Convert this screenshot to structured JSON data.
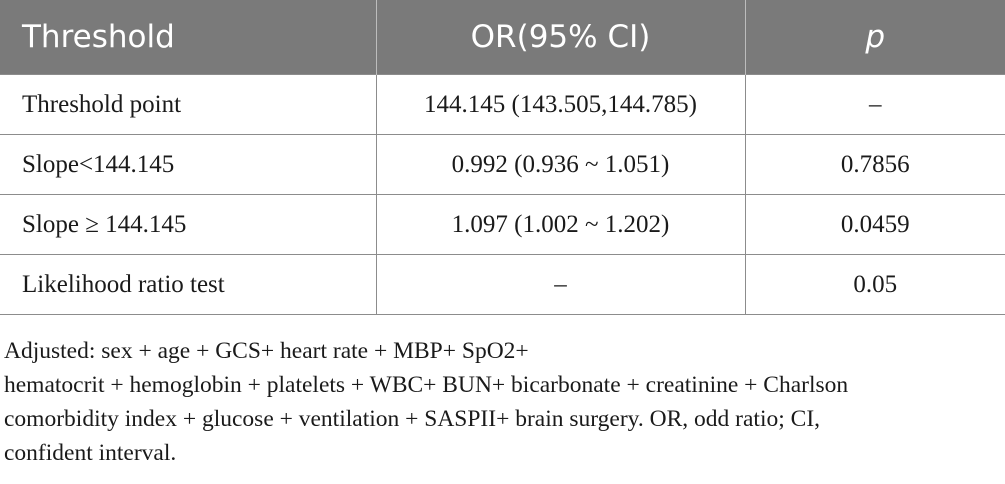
{
  "table": {
    "headers": [
      "Threshold",
      "OR(95% CI)",
      "p"
    ],
    "rows": [
      [
        "Threshold point",
        "144.145 (143.505,144.785)",
        "–"
      ],
      [
        "Slope<144.145",
        "0.992 (0.936 ~ 1.051)",
        "0.7856"
      ],
      [
        "Slope ≥ 144.145",
        "1.097 (1.002 ~ 1.202)",
        "0.0459"
      ],
      [
        "Likelihood ratio test",
        "–",
        "0.05"
      ]
    ]
  },
  "footnote": {
    "lines": [
      "Adjusted: sex + age + GCS+ heart rate + MBP+ SpO2+",
      "hematocrit + hemoglobin + platelets + WBC+ BUN+ bicarbonate + creatinine + Charlson",
      "comorbidity index + glucose + ventilation + SASPII+ brain surgery. OR, odd ratio; CI,",
      "confident interval."
    ]
  }
}
